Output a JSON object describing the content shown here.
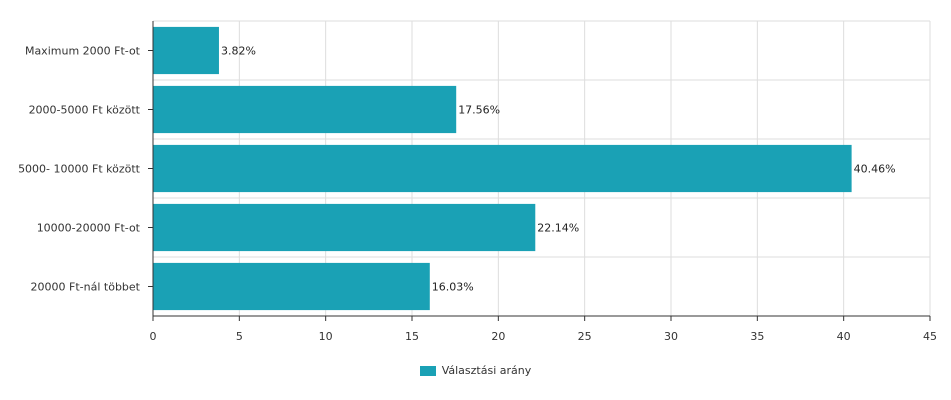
{
  "chart_data": {
    "type": "bar",
    "orientation": "horizontal",
    "categories": [
      "Maximum 2000 Ft-ot",
      "2000-5000 Ft között",
      "5000- 10000 Ft között",
      "10000-20000 Ft-ot",
      "20000 Ft-nál többet"
    ],
    "series": [
      {
        "name": "Választási arány",
        "values": [
          3.82,
          17.56,
          40.46,
          22.14,
          16.03
        ],
        "labels": [
          "3.82%",
          "17.56%",
          "40.46%",
          "22.14%",
          "16.03%"
        ],
        "color": "#1aa1b5"
      }
    ],
    "xlim": [
      0,
      45
    ],
    "xticks": [
      0,
      5,
      10,
      15,
      20,
      25,
      30,
      35,
      40,
      45
    ],
    "grid": true,
    "legend_position": "bottom"
  }
}
